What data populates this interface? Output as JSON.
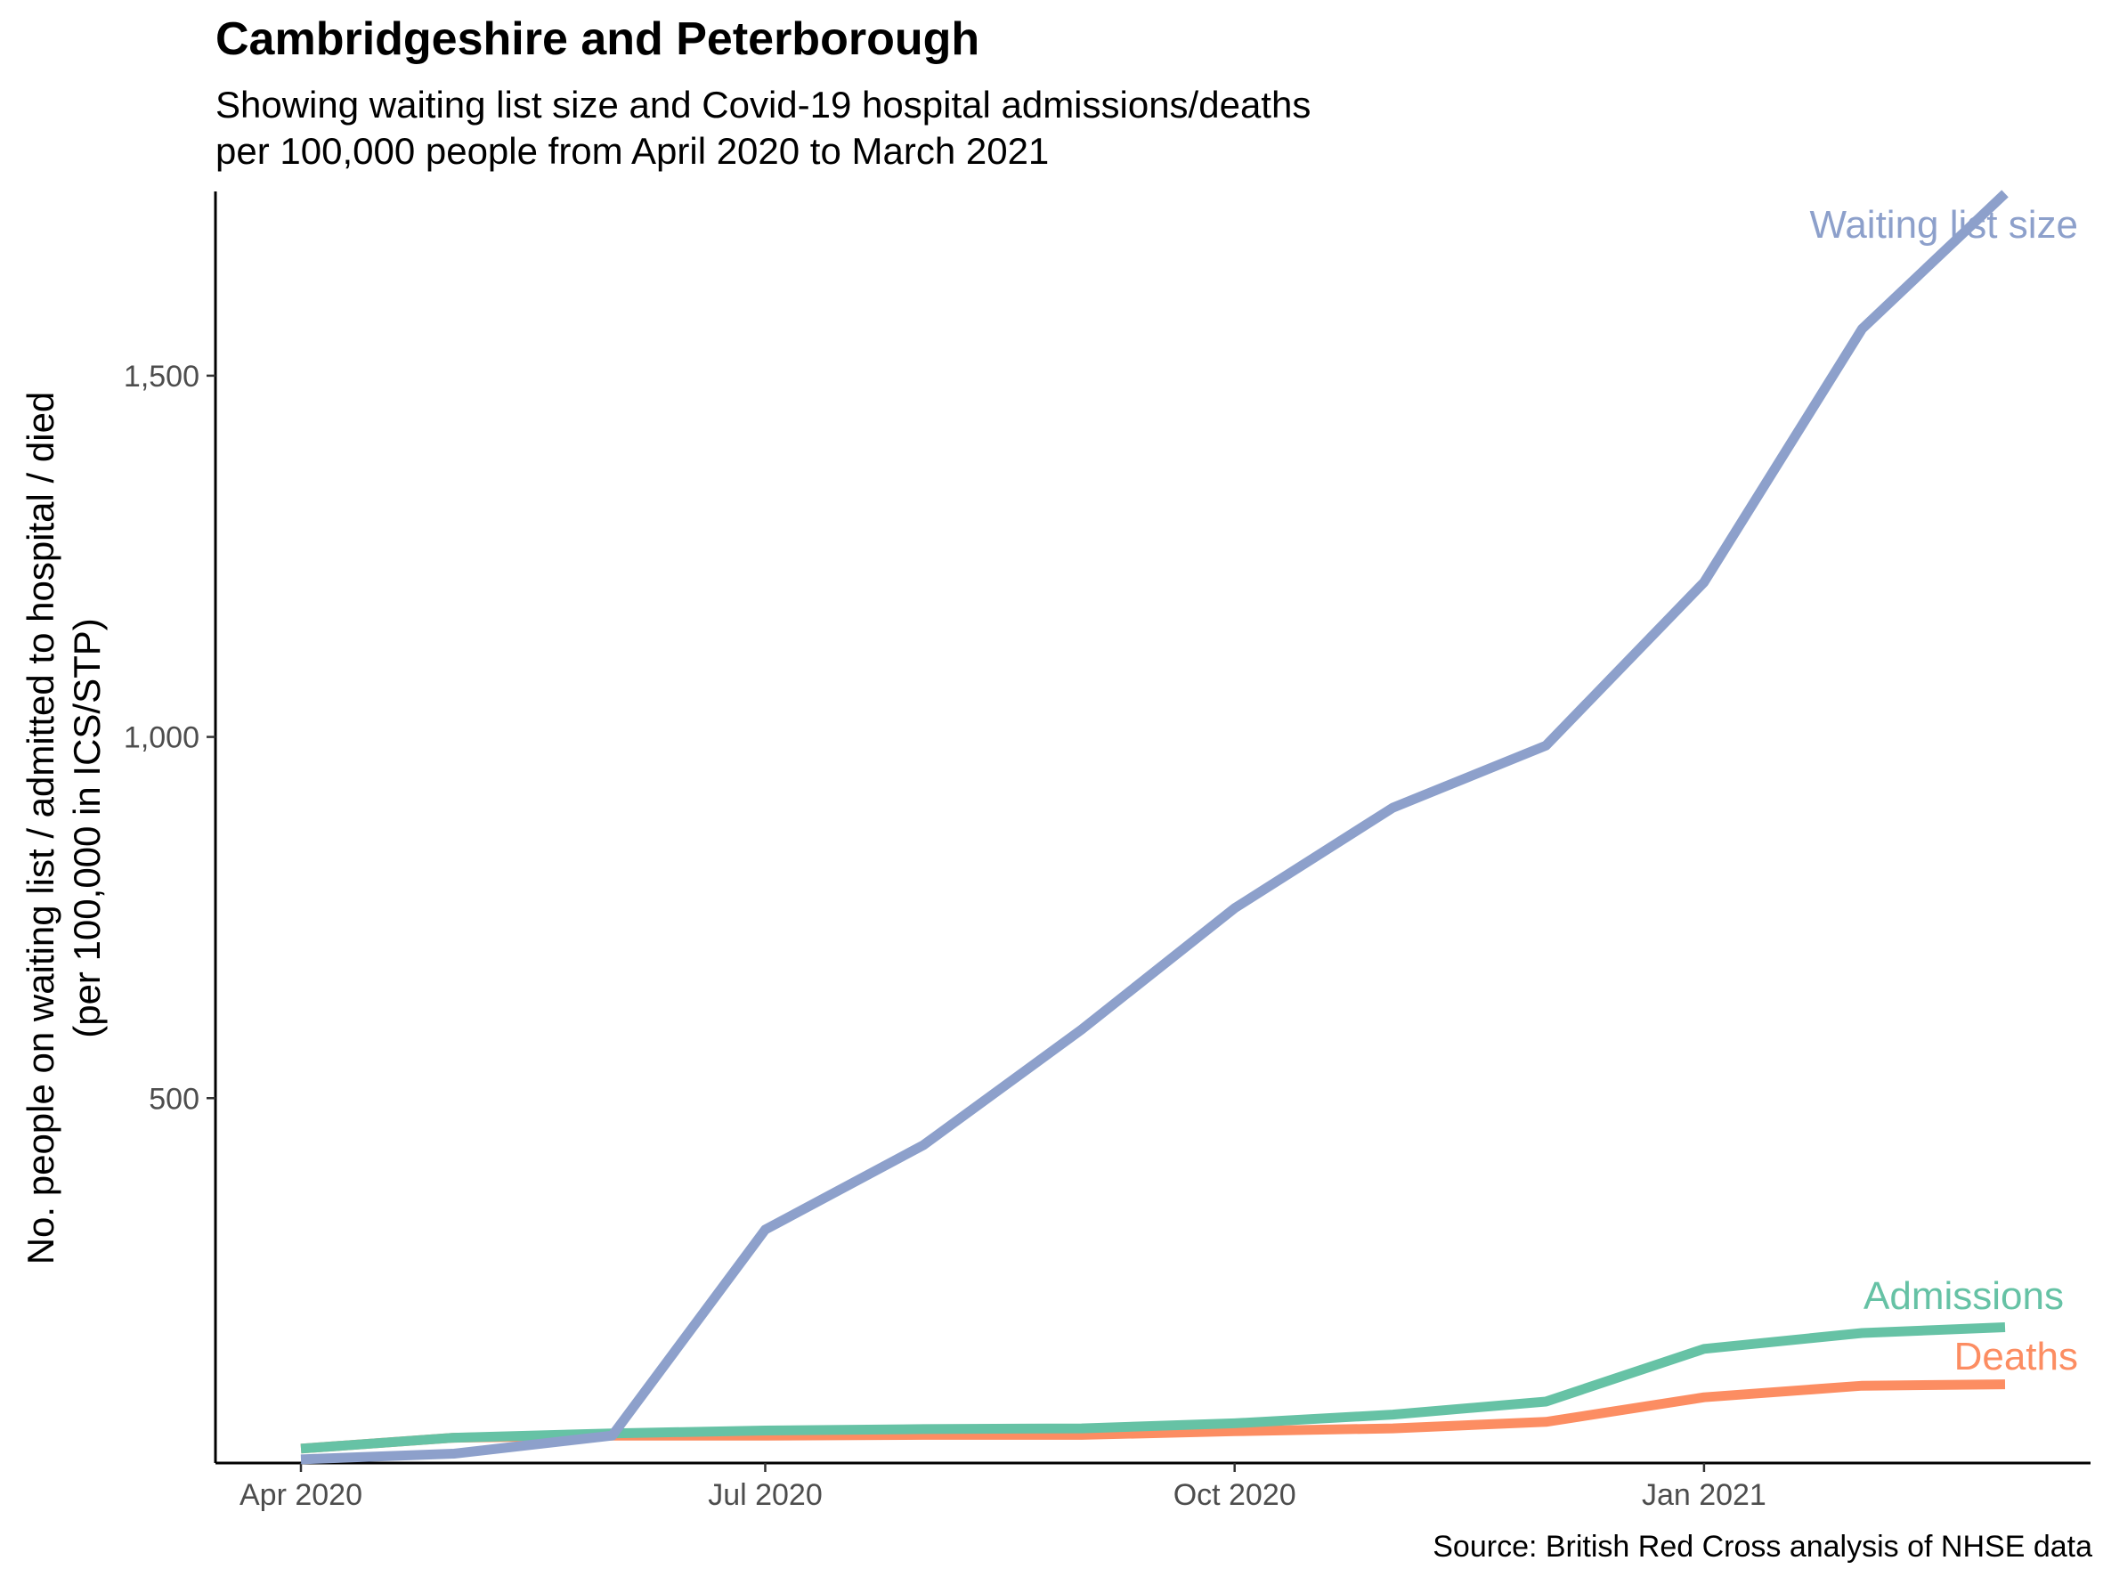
{
  "title": "Cambridgeshire and Peterborough",
  "subtitle_lines": [
    "Showing waiting list size and Covid-19 hospital admissions/deaths",
    "per 100,000 people from April 2020 to March 2021"
  ],
  "caption": "Source: British Red Cross analysis of NHSE data",
  "chart_data": {
    "type": "line",
    "x": [
      "2020-04",
      "2020-05",
      "2020-06",
      "2020-07",
      "2020-08",
      "2020-09",
      "2020-10",
      "2020-11",
      "2020-12",
      "2021-01",
      "2021-02",
      "2021-03"
    ],
    "series": [
      {
        "name": "Waiting list size",
        "color": "#8da0cb",
        "values": [
          0,
          8,
          33,
          318,
          435,
          595,
          763,
          902,
          988,
          1214,
          1565,
          1752
        ]
      },
      {
        "name": "Admissions",
        "color": "#66c2a5",
        "values": [
          15,
          30,
          36,
          40,
          42,
          43,
          50,
          62,
          80,
          153,
          175,
          183
        ]
      },
      {
        "name": "Deaths",
        "color": "#fc8d62",
        "values": [
          15,
          30,
          33,
          33,
          34,
          34,
          39,
          43,
          52,
          86,
          102,
          104
        ]
      }
    ],
    "ylabel_lines": [
      "No. people on waiting list / admitted to hospital / died",
      "(per 100,000 in ICS/STP)"
    ],
    "xlabel": "",
    "x_ticks": [
      {
        "value": "2020-04",
        "label": "Apr 2020"
      },
      {
        "value": "2020-07",
        "label": "Jul 2020"
      },
      {
        "value": "2020-10",
        "label": "Oct 2020"
      },
      {
        "value": "2021-01",
        "label": "Jan 2021"
      }
    ],
    "y_ticks": [
      {
        "value": 500,
        "label": "500"
      },
      {
        "value": 1000,
        "label": "1,000"
      },
      {
        "value": 1500,
        "label": "1,500"
      }
    ],
    "ylim": [
      -5,
      1755
    ],
    "grid": false,
    "legend": "direct labels at line ends"
  }
}
